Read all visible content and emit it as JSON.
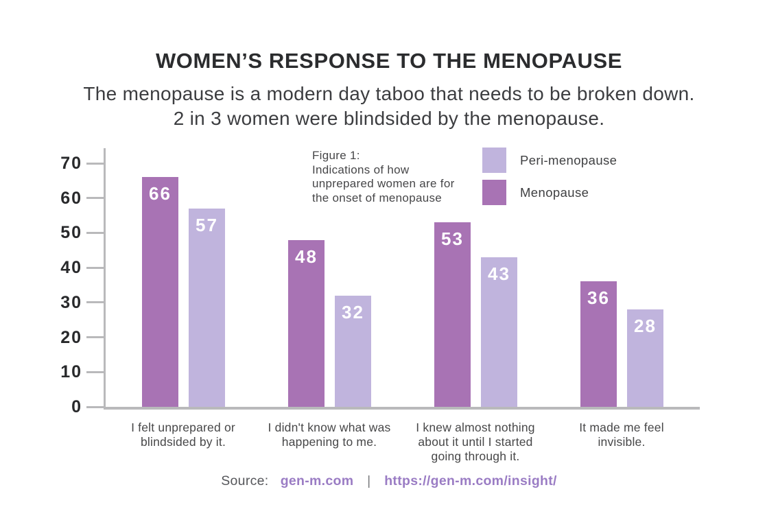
{
  "header": {
    "title": "WOMEN’S RESPONSE TO THE MENOPAUSE",
    "subtitle_line1": "The menopause is a modern day taboo that needs to be broken down.",
    "subtitle_line2": "2 in 3 women were blindsided by the menopause."
  },
  "figure_note": {
    "line1": "Figure 1:",
    "line2": "Indications of how",
    "line3": "unprepared women are for",
    "line4": "the onset of menopause"
  },
  "legend": {
    "items": [
      {
        "label": "Peri-menopause",
        "color": "#c0b4dd"
      },
      {
        "label": "Menopause",
        "color": "#a873b4"
      }
    ]
  },
  "chart_data": {
    "type": "bar",
    "title": "Figure 1: Indications of how unprepared women are for the onset of menopause",
    "categories": [
      "I felt unprepared or blindsided by it.",
      "I didn't know what was happening to me.",
      "I knew almost nothing about it until I started going through it.",
      "It made me feel invisible."
    ],
    "series": [
      {
        "name": "Menopause",
        "color": "#a873b4",
        "values": [
          66,
          48,
          53,
          36
        ]
      },
      {
        "name": "Peri-menopause",
        "color": "#c0b4dd",
        "values": [
          57,
          32,
          43,
          28
        ]
      }
    ],
    "xlabel": "",
    "ylabel": "",
    "ylim": [
      0,
      70
    ],
    "yticks": [
      0,
      10,
      20,
      30,
      40,
      50,
      60,
      70
    ],
    "grid": false,
    "legend_position": "top-right",
    "value_labels": true,
    "axis_color": "#b9b9bb"
  },
  "source": {
    "prefix": "Source:",
    "link1": "gen-m.com",
    "separator": "|",
    "link2": "https://gen-m.com/insight/",
    "link_color": "#9a7cc4"
  }
}
